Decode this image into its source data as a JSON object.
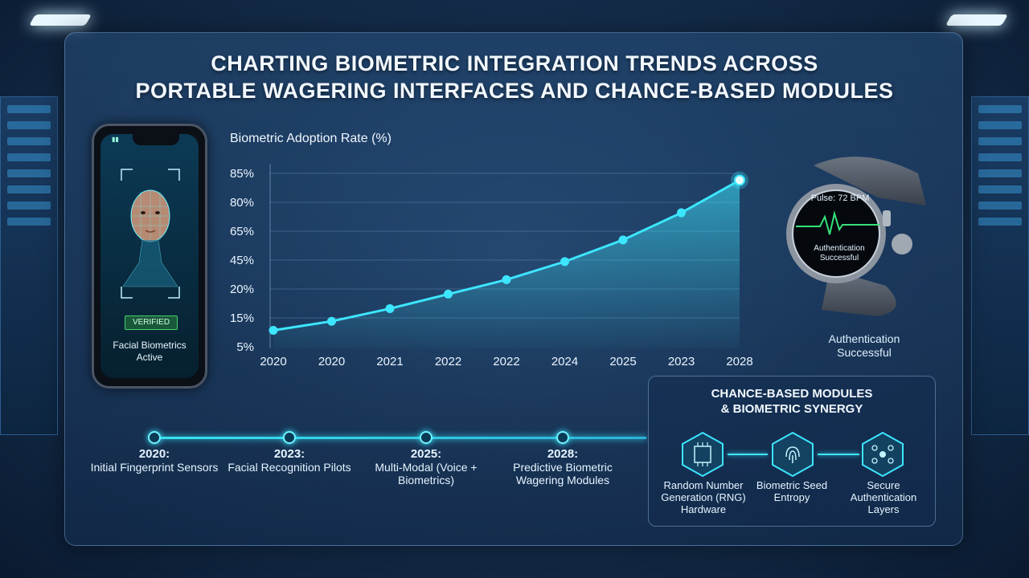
{
  "title": {
    "line1": "CHARTING BIOMETRIC INTEGRATION TRENDS ACROSS",
    "line2": "PORTABLE WAGERING INTERFACES AND CHANCE-BASED MODULES"
  },
  "phone": {
    "badge": "VERIFIED",
    "label": "Facial Biometrics Active"
  },
  "watch": {
    "pulse": "Pulse: 72 BPM",
    "auth_line1": "Authentication",
    "auth_line2": "Successful",
    "caption": "Authentication Successful"
  },
  "chart_data": {
    "type": "line",
    "title": "Biometric Adoption Rate (%)",
    "categories": [
      "2020",
      "2020",
      "2021",
      "2022",
      "2022",
      "2024",
      "2025",
      "2023",
      "2028"
    ],
    "y_tick_labels": [
      "85%",
      "80%",
      "65%",
      "45%",
      "20%",
      "15%",
      "5%"
    ],
    "values": [
      15,
      20,
      27,
      35,
      43,
      53,
      65,
      80,
      98
    ],
    "ylim": [
      5,
      100
    ],
    "grid": true,
    "series_color": "#3de6ff"
  },
  "timeline": [
    {
      "year": "2020:",
      "text": "Initial Fingerprint Sensors"
    },
    {
      "year": "2023:",
      "text": "Facial Recognition Pilots"
    },
    {
      "year": "2025:",
      "text": "Multi-Modal (Voice + Biometrics)"
    },
    {
      "year": "2028:",
      "text": "Predictive Biometric Wagering Modules"
    }
  ],
  "synergy": {
    "title_line1": "CHANCE-BASED MODULES",
    "title_line2": "& BIOMETRIC SYNERGY",
    "items": [
      {
        "label": "Random Number Generation (RNG) Hardware"
      },
      {
        "label": "Biometric Seed Entropy"
      },
      {
        "label": "Secure Authentication Layers"
      }
    ]
  },
  "colors": {
    "accent": "#3de6ff",
    "verified": "#46d36a"
  }
}
